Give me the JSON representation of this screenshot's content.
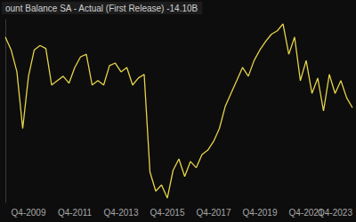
{
  "chart_data": {
    "type": "line",
    "title": "ount Balance SA - Actual (First Release) -14.10B",
    "categories": [
      null,
      null,
      null,
      null,
      "Q4-2009",
      null,
      null,
      null,
      null,
      null,
      null,
      null,
      "Q4-2011",
      null,
      null,
      null,
      null,
      null,
      null,
      null,
      "Q4-2013",
      null,
      null,
      null,
      null,
      null,
      null,
      null,
      "Q4-2015",
      null,
      null,
      null,
      null,
      null,
      null,
      null,
      "Q4-2017",
      null,
      null,
      null,
      null,
      null,
      null,
      null,
      "Q4-2019",
      null,
      null,
      null,
      null,
      null,
      null,
      null,
      "Q4-2021",
      null,
      null,
      null,
      null,
      null,
      null,
      null,
      "Q4-2023"
    ],
    "values": [
      5.2,
      1.7,
      -4.3,
      -19.8,
      -5.5,
      1.7,
      2.9,
      2.1,
      -7.9,
      -6.7,
      -5.5,
      -7.4,
      -3.1,
      -0.2,
      0.5,
      -7.9,
      -6.7,
      -7.9,
      -2.6,
      -1.9,
      -4.3,
      -3.1,
      -7.9,
      -6.0,
      -5.0,
      -31.7,
      -36.9,
      -35.2,
      -38.8,
      -31.2,
      -28.1,
      -32.9,
      -28.8,
      -30.5,
      -26.9,
      -25.7,
      -23.3,
      -19.8,
      -13.8,
      -10.2,
      -6.7,
      -3.1,
      -5.5,
      -1.2,
      1.7,
      4.0,
      6.0,
      6.9,
      8.8,
      0.5,
      5.2,
      -6.7,
      -1.2,
      -10.2,
      -6.0,
      -15.0,
      -5.0,
      -10.2,
      -6.7,
      -11.4,
      -14.1
    ],
    "color": "#e6d44a",
    "ylim": [
      -40,
      10
    ],
    "grid": false,
    "tick_labels": "x"
  }
}
